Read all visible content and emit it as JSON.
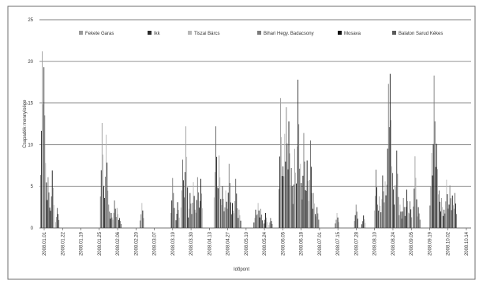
{
  "chart_data": {
    "type": "bar",
    "title": "",
    "xlabel": "Időpont",
    "ylabel": "Csapadék mennyisége",
    "ylim": [
      0,
      25
    ],
    "yticks": [
      "0",
      "5",
      "10",
      "15",
      "20",
      "25"
    ],
    "grid": true,
    "legend_position": "top",
    "series_names": [
      "Fekete Garas",
      "Ikk",
      "Tiszai Bárcs",
      "Bihari Hegy. Badacsony",
      "Mosava",
      "Balaton Sarud Kékes"
    ],
    "series_colors": [
      "#9a9a9a",
      "#2a2a2a",
      "#b8b8b8",
      "#7a7a7a",
      "#101010",
      "#5a5a5a"
    ],
    "x_labels": [
      "2008.01.01",
      "2008.01.22",
      "2008.01.19",
      "2008.01.25",
      "2008.02.06",
      "2008.02.20",
      "2008.03.07",
      "2008.03.19",
      "2008.03.30",
      "2008.04.13",
      "2008.04.27",
      "2008.05.10",
      "2008.05.24",
      "2008.06.05",
      "2008.06.18",
      "2008.07.01",
      "2008.07.15",
      "2008.07.28",
      "2008.08.10",
      "2008.08.24",
      "2008.09.05",
      "2008.09.19",
      "2008.10.02",
      "2008.10.14"
    ],
    "peaks": [
      {
        "pos": 3,
        "value": 21.2
      },
      {
        "pos": 5,
        "value": 19.3
      },
      {
        "pos": 7,
        "value": 7.8
      },
      {
        "pos": 10,
        "value": 6.1
      },
      {
        "pos": 15,
        "value": 6.9
      },
      {
        "pos": 21,
        "value": 2.4
      },
      {
        "pos": 75,
        "value": 12.6
      },
      {
        "pos": 78,
        "value": 3.6
      },
      {
        "pos": 80,
        "value": 11.2
      },
      {
        "pos": 83,
        "value": 2.8
      },
      {
        "pos": 86,
        "value": 1.8
      },
      {
        "pos": 90,
        "value": 3.3
      },
      {
        "pos": 93,
        "value": 2.4
      },
      {
        "pos": 96,
        "value": 1.2
      },
      {
        "pos": 123,
        "value": 3.0
      },
      {
        "pos": 160,
        "value": 6.0
      },
      {
        "pos": 166,
        "value": 3.1
      },
      {
        "pos": 172,
        "value": 8.2
      },
      {
        "pos": 176,
        "value": 12.2
      },
      {
        "pos": 181,
        "value": 4.2
      },
      {
        "pos": 185,
        "value": 5.5
      },
      {
        "pos": 190,
        "value": 6.1
      },
      {
        "pos": 194,
        "value": 5.9
      },
      {
        "pos": 212,
        "value": 12.2
      },
      {
        "pos": 216,
        "value": 8.7
      },
      {
        "pos": 220,
        "value": 5.0
      },
      {
        "pos": 224,
        "value": 4.5
      },
      {
        "pos": 228,
        "value": 7.7
      },
      {
        "pos": 232,
        "value": 3.0
      },
      {
        "pos": 236,
        "value": 5.9
      },
      {
        "pos": 240,
        "value": 2.2
      },
      {
        "pos": 260,
        "value": 2.2
      },
      {
        "pos": 263,
        "value": 3.0
      },
      {
        "pos": 266,
        "value": 2.3
      },
      {
        "pos": 272,
        "value": 1.8
      },
      {
        "pos": 278,
        "value": 1.2
      },
      {
        "pos": 290,
        "value": 15.6
      },
      {
        "pos": 293,
        "value": 7.4
      },
      {
        "pos": 295,
        "value": 11.3
      },
      {
        "pos": 297,
        "value": 14.5
      },
      {
        "pos": 300,
        "value": 12.8
      },
      {
        "pos": 303,
        "value": 7.2
      },
      {
        "pos": 307,
        "value": 9.5
      },
      {
        "pos": 311,
        "value": 17.8
      },
      {
        "pos": 314,
        "value": 7.7
      },
      {
        "pos": 318,
        "value": 11.4
      },
      {
        "pos": 322,
        "value": 8.1
      },
      {
        "pos": 326,
        "value": 10.5
      },
      {
        "pos": 330,
        "value": 4.2
      },
      {
        "pos": 334,
        "value": 2.5
      },
      {
        "pos": 358,
        "value": 1.8
      },
      {
        "pos": 381,
        "value": 2.8
      },
      {
        "pos": 390,
        "value": 1.5
      },
      {
        "pos": 405,
        "value": 7.0
      },
      {
        "pos": 409,
        "value": 3.8
      },
      {
        "pos": 413,
        "value": 6.3
      },
      {
        "pos": 416,
        "value": 5.6
      },
      {
        "pos": 420,
        "value": 17.3
      },
      {
        "pos": 422,
        "value": 18.5
      },
      {
        "pos": 425,
        "value": 6.6
      },
      {
        "pos": 428,
        "value": 5.1
      },
      {
        "pos": 430,
        "value": 9.3
      },
      {
        "pos": 434,
        "value": 2.8
      },
      {
        "pos": 438,
        "value": 3.6
      },
      {
        "pos": 442,
        "value": 4.6
      },
      {
        "pos": 446,
        "value": 3.2
      },
      {
        "pos": 452,
        "value": 8.6
      },
      {
        "pos": 456,
        "value": 2.5
      },
      {
        "pos": 472,
        "value": 9.0
      },
      {
        "pos": 475,
        "value": 18.3
      },
      {
        "pos": 478,
        "value": 10.1
      },
      {
        "pos": 481,
        "value": 4.5
      },
      {
        "pos": 484,
        "value": 3.6
      },
      {
        "pos": 487,
        "value": 2.2
      },
      {
        "pos": 490,
        "value": 5.8
      },
      {
        "pos": 494,
        "value": 5.1
      },
      {
        "pos": 497,
        "value": 3.9
      },
      {
        "pos": 500,
        "value": 4.2
      }
    ]
  }
}
